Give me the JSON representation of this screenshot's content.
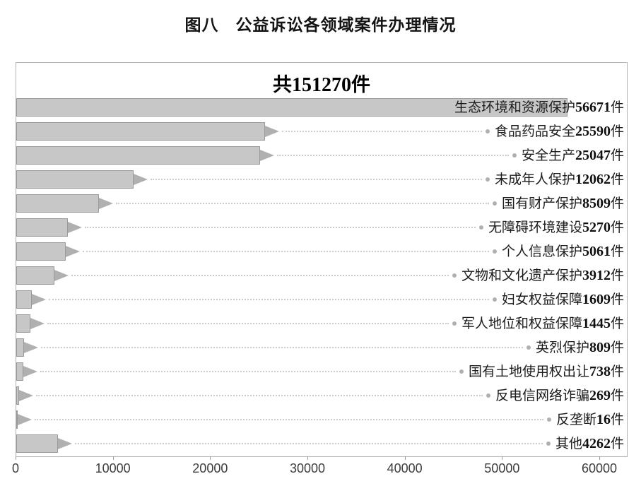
{
  "figure": {
    "title": "图八　公益诉讼各领域案件办理情况"
  },
  "chart_data": {
    "type": "bar",
    "orientation": "horizontal",
    "title": "共151270件",
    "total_label": {
      "prefix": "共",
      "number": "151270",
      "suffix": "件"
    },
    "unit": "件",
    "categories": [
      "生态环境和资源保护",
      "食品药品安全",
      "安全生产",
      "未成年人保护",
      "国有财产保护",
      "无障碍环境建设",
      "个人信息保护",
      "文物和文化遗产保护",
      "妇女权益保障",
      "军人地位和权益保障",
      "英烈保护",
      "国有土地使用权出让",
      "反电信网络诈骗",
      "反垄断",
      "其他"
    ],
    "values": [
      56671,
      25590,
      25047,
      12062,
      8509,
      5270,
      5061,
      3912,
      1609,
      1445,
      809,
      738,
      269,
      16,
      4262
    ],
    "xlim": [
      0,
      60000
    ],
    "x_ticks": [
      0,
      10000,
      20000,
      30000,
      40000,
      50000,
      60000
    ],
    "grid": false,
    "legend": "none",
    "colors": {
      "bar_fill": "#c7c7c7",
      "bar_border": "#9a9a9a",
      "arrow_fill": "#b0b0b0",
      "leader_line": "#cbcbcb",
      "leader_dot": "#b0b0b0",
      "plot_border": "#b3b3b3",
      "text": "#1c1c1c"
    }
  }
}
